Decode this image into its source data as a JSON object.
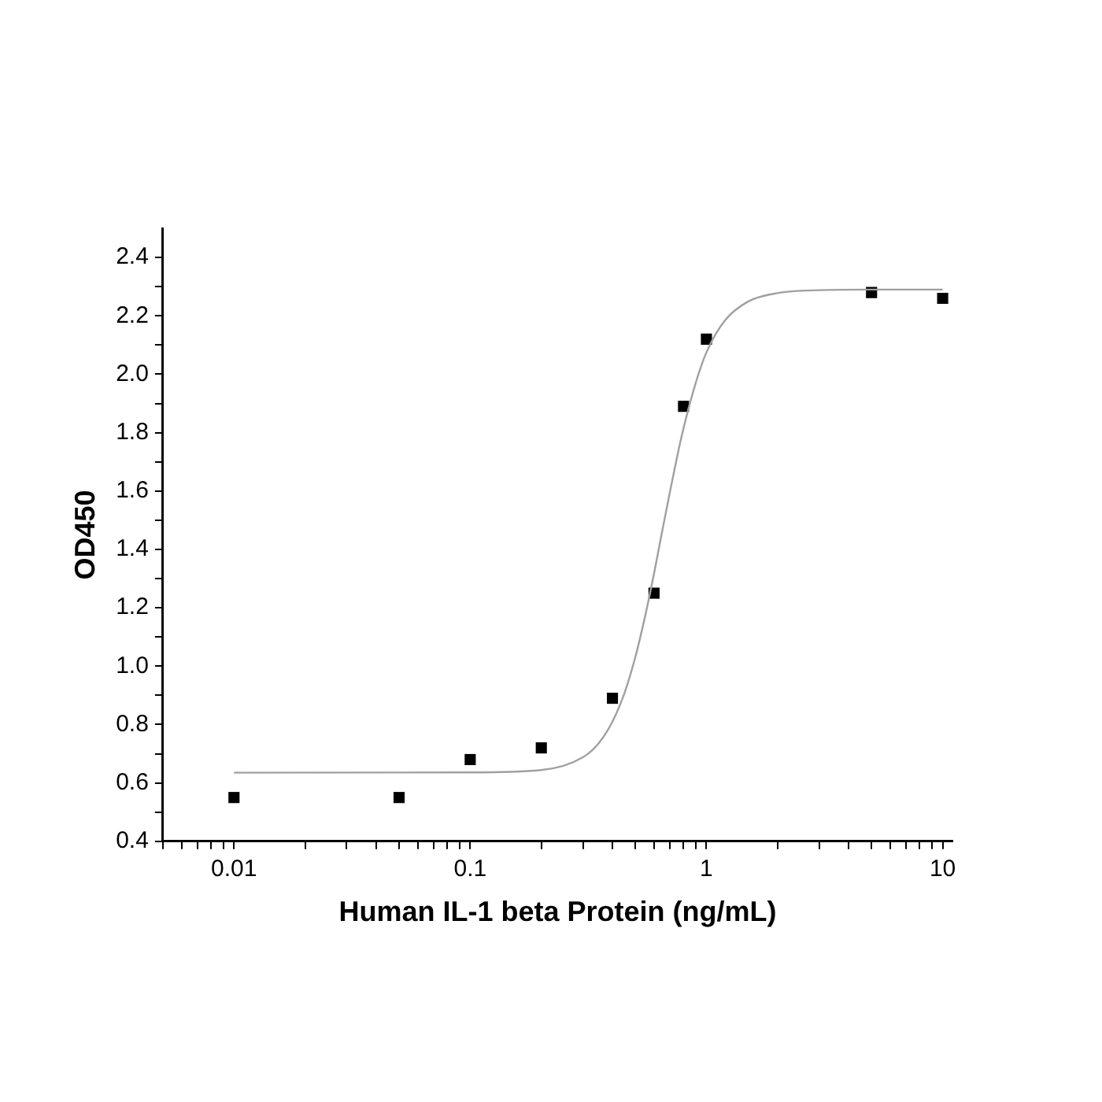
{
  "chart_data": {
    "type": "scatter",
    "xlabel": "Human IL-1 beta Protein (ng/mL)",
    "ylabel": "OD450",
    "log": "x",
    "xlim": [
      0.005,
      11
    ],
    "xticks": [
      {
        "value": 0.005,
        "label": null
      },
      {
        "value": 0.006,
        "label": null
      },
      {
        "value": 0.007,
        "label": null
      },
      {
        "value": 0.008,
        "label": null
      },
      {
        "value": 0.009,
        "label": null
      },
      0.01,
      {
        "value": 0.02,
        "label": null
      },
      {
        "value": 0.03,
        "label": null
      },
      {
        "value": 0.04,
        "label": null
      },
      {
        "value": 0.05,
        "label": null
      },
      {
        "value": 0.06,
        "label": null
      },
      {
        "value": 0.07,
        "label": null
      },
      {
        "value": 0.08,
        "label": null
      },
      {
        "value": 0.09,
        "label": null
      },
      0.1,
      {
        "value": 0.2,
        "label": null
      },
      {
        "value": 0.3,
        "label": null
      },
      {
        "value": 0.4,
        "label": null
      },
      {
        "value": 0.5,
        "label": null
      },
      {
        "value": 0.6,
        "label": null
      },
      {
        "value": 0.7,
        "label": null
      },
      {
        "value": 0.8,
        "label": null
      },
      {
        "value": 0.9,
        "label": null
      },
      1,
      {
        "value": 2,
        "label": null
      },
      {
        "value": 3,
        "label": null
      },
      {
        "value": 4,
        "label": null
      },
      {
        "value": 5,
        "label": null
      },
      {
        "value": 6,
        "label": null
      },
      {
        "value": 7,
        "label": null
      },
      {
        "value": 8,
        "label": null
      },
      {
        "value": 9,
        "label": null
      },
      10
    ],
    "ylim": [
      0.4,
      2.5
    ],
    "yticks": [
      0.4,
      {
        "value": 0.5,
        "label": null
      },
      0.6,
      {
        "value": 0.7,
        "label": null
      },
      0.8,
      {
        "value": 0.9,
        "label": null
      },
      {
        "value": 1,
        "label": "1.0"
      },
      {
        "value": 1.1,
        "label": null
      },
      1.2,
      {
        "value": 1.3,
        "label": null
      },
      1.4,
      {
        "value": 1.5,
        "label": null
      },
      1.6,
      {
        "value": 1.7,
        "label": null
      },
      1.8,
      {
        "value": 1.9,
        "label": null
      },
      {
        "value": 2,
        "label": "2.0"
      },
      {
        "value": 2.1,
        "label": null
      },
      2.2,
      {
        "value": 2.3,
        "label": null
      },
      2.4
    ],
    "grid": false,
    "legend": false,
    "marker": "square",
    "series": [
      {
        "type": "line",
        "color": "#a0a0a0",
        "marker": "none",
        "line_style": "solid",
        "x": [
          0.01,
          0.1,
          0.2,
          0.3,
          0.35,
          0.4,
          0.45,
          0.5,
          0.55,
          0.6,
          0.65,
          0.7,
          0.75,
          0.8,
          0.9,
          1,
          1.2,
          1.5,
          2,
          3,
          5,
          10
        ],
        "values": [
          0.635,
          0.636,
          0.644,
          0.688,
          0.736,
          0.81,
          0.908,
          1.031,
          1.171,
          1.317,
          1.463,
          1.595,
          1.714,
          1.815,
          1.969,
          2.075,
          2.185,
          2.249,
          2.278,
          2.288,
          2.29,
          2.29
        ]
      },
      {
        "color": "#000000",
        "x": [
          0.01,
          0.05,
          0.1,
          0.2,
          0.4,
          0.6,
          0.8,
          1,
          5,
          10
        ],
        "values": [
          0.55,
          0.55,
          0.68,
          0.72,
          0.89,
          1.25,
          1.89,
          2.12,
          2.28,
          2.26
        ]
      }
    ]
  }
}
